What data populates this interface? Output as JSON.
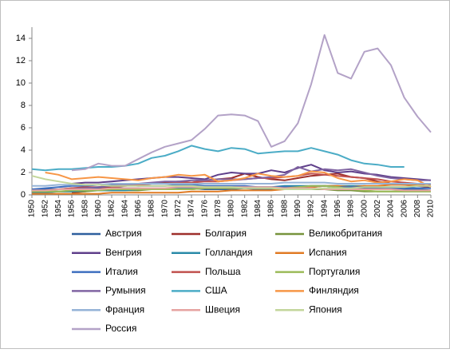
{
  "chart_data": {
    "type": "line",
    "x": [
      1950,
      1952,
      1954,
      1956,
      1958,
      1960,
      1962,
      1964,
      1966,
      1968,
      1970,
      1972,
      1974,
      1976,
      1978,
      1980,
      1982,
      1984,
      1986,
      1988,
      1990,
      1992,
      1994,
      1996,
      1998,
      2000,
      2002,
      2004,
      2006,
      2008,
      2010
    ],
    "xlim": [
      1950,
      2010
    ],
    "xticks": [
      1950,
      1952,
      1954,
      1956,
      1958,
      1960,
      1962,
      1964,
      1966,
      1968,
      1970,
      1972,
      1974,
      1976,
      1978,
      1980,
      1982,
      1984,
      1986,
      1988,
      1990,
      1992,
      1994,
      1996,
      1998,
      2000,
      2002,
      2004,
      2006,
      2008,
      2010
    ],
    "ylim": [
      0,
      15
    ],
    "yticks": [
      0,
      2,
      4,
      6,
      8,
      10,
      12,
      14
    ],
    "grid": false,
    "legend": "bottom",
    "series": [
      {
        "name": "Австрия",
        "color": "#2e5f9e",
        "values": [
          0.4,
          0.5,
          0.5,
          0.6,
          0.5,
          0.6,
          0.7,
          0.6,
          0.6,
          0.5,
          0.5,
          0.6,
          0.6,
          0.5,
          0.5,
          0.5,
          0.6,
          0.5,
          0.5,
          0.5,
          0.6,
          0.7,
          0.8,
          0.7,
          0.7,
          0.6,
          0.6,
          0.5,
          0.5,
          0.5,
          0.4
        ]
      },
      {
        "name": "Болгария",
        "color": "#9e2f2b",
        "values": [
          null,
          null,
          null,
          0.2,
          0.3,
          0.5,
          0.7,
          0.8,
          0.9,
          1.0,
          1.1,
          1.2,
          1.1,
          1.3,
          1.4,
          1.5,
          1.9,
          1.6,
          1.4,
          1.3,
          1.5,
          1.7,
          1.8,
          1.9,
          1.6,
          1.5,
          1.2,
          1.0,
          0.9,
          0.8,
          0.7
        ]
      },
      {
        "name": "Великобритания",
        "color": "#77933c",
        "values": [
          0.3,
          0.3,
          0.3,
          0.3,
          0.3,
          0.4,
          0.4,
          0.4,
          0.4,
          0.5,
          0.5,
          0.5,
          0.5,
          0.6,
          0.6,
          0.6,
          0.7,
          0.6,
          0.6,
          0.5,
          0.5,
          0.5,
          0.5,
          0.4,
          0.4,
          0.3,
          0.3,
          0.3,
          0.3,
          0.3,
          0.3
        ]
      },
      {
        "name": "Венгрия",
        "color": "#5f3f8a",
        "values": [
          null,
          null,
          null,
          1.0,
          1.1,
          1.1,
          1.2,
          1.3,
          1.4,
          1.5,
          1.6,
          1.6,
          1.5,
          1.4,
          1.8,
          2.0,
          1.9,
          1.9,
          2.2,
          2.0,
          2.4,
          2.7,
          2.2,
          2.0,
          2.1,
          1.9,
          1.8,
          1.6,
          1.5,
          1.4,
          1.3
        ]
      },
      {
        "name": "Голландия",
        "color": "#2a8aa8",
        "values": [
          0.2,
          0.2,
          0.3,
          0.3,
          0.4,
          0.4,
          0.4,
          0.4,
          0.5,
          0.5,
          0.5,
          0.6,
          0.6,
          0.6,
          0.6,
          0.7,
          0.7,
          0.7,
          0.7,
          0.8,
          0.8,
          0.8,
          0.8,
          0.8,
          0.8,
          0.8,
          0.7,
          0.7,
          0.7,
          0.6,
          0.6
        ]
      },
      {
        "name": "Испания",
        "color": "#e07b24",
        "values": [
          0.1,
          0.1,
          0.1,
          0.1,
          0.1,
          0.1,
          0.2,
          0.2,
          0.2,
          0.2,
          0.2,
          0.2,
          0.3,
          0.3,
          0.3,
          0.4,
          0.4,
          0.4,
          0.4,
          0.5,
          0.6,
          0.7,
          0.8,
          0.8,
          0.7,
          0.8,
          0.8,
          0.9,
          0.9,
          0.9,
          0.8
        ]
      },
      {
        "name": "Италия",
        "color": "#3e6fbf",
        "values": [
          0.5,
          0.6,
          0.7,
          0.8,
          0.8,
          0.9,
          0.9,
          0.9,
          0.8,
          0.8,
          0.8,
          0.9,
          0.9,
          0.8,
          0.8,
          0.8,
          0.8,
          0.7,
          0.7,
          0.7,
          0.7,
          0.8,
          0.8,
          0.7,
          0.7,
          0.7,
          0.7,
          0.6,
          0.6,
          0.6,
          0.6
        ]
      },
      {
        "name": "Польша",
        "color": "#c0504d",
        "values": [
          0.3,
          0.4,
          0.5,
          0.6,
          0.7,
          0.7,
          0.8,
          0.8,
          0.9,
          1.0,
          1.0,
          1.1,
          1.1,
          1.2,
          1.2,
          1.3,
          1.4,
          1.5,
          1.5,
          1.6,
          1.7,
          1.9,
          1.8,
          1.7,
          1.6,
          1.5,
          1.4,
          1.2,
          1.1,
          1.0,
          0.9
        ]
      },
      {
        "name": "Португалия",
        "color": "#9bbb59",
        "values": [
          0.3,
          0.3,
          0.3,
          0.4,
          0.4,
          0.4,
          0.5,
          0.5,
          0.5,
          0.5,
          0.5,
          0.5,
          0.5,
          0.6,
          0.6,
          0.6,
          0.6,
          0.6,
          0.6,
          0.6,
          0.7,
          0.8,
          0.8,
          0.7,
          0.5,
          0.4,
          0.3,
          0.3,
          0.3,
          0.3,
          0.3
        ]
      },
      {
        "name": "Румыния",
        "color": "#8064a2",
        "values": [
          null,
          null,
          null,
          0.5,
          0.6,
          0.7,
          0.8,
          0.9,
          1.0,
          1.1,
          1.2,
          1.2,
          1.3,
          1.3,
          1.4,
          1.4,
          1.4,
          1.5,
          1.6,
          1.8,
          2.5,
          2.1,
          2.3,
          2.2,
          2.3,
          2.0,
          1.7,
          1.5,
          1.4,
          1.3,
          1.3
        ]
      },
      {
        "name": "США",
        "color": "#4bacc6",
        "values": [
          2.3,
          2.2,
          2.3,
          2.3,
          2.4,
          2.5,
          2.5,
          2.6,
          2.8,
          3.3,
          3.5,
          3.9,
          4.4,
          4.1,
          3.9,
          4.2,
          4.1,
          3.7,
          3.8,
          3.9,
          3.9,
          4.2,
          3.9,
          3.6,
          3.1,
          2.8,
          2.7,
          2.5,
          2.5,
          null,
          null
        ]
      },
      {
        "name": "Финляндия",
        "color": "#f79646",
        "values": [
          null,
          2.0,
          1.8,
          1.4,
          1.5,
          1.6,
          1.5,
          1.4,
          1.3,
          1.5,
          1.6,
          1.8,
          1.7,
          1.8,
          1.2,
          1.3,
          1.5,
          1.9,
          1.7,
          1.6,
          1.7,
          2.1,
          2.0,
          1.5,
          1.2,
          1.3,
          1.1,
          1.2,
          1.4,
          1.3,
          0.7
        ]
      },
      {
        "name": "Франция",
        "color": "#95b3d7",
        "values": [
          0.8,
          0.8,
          0.9,
          0.9,
          0.9,
          0.9,
          1.0,
          1.0,
          1.0,
          1.0,
          1.0,
          1.0,
          1.0,
          1.0,
          1.0,
          1.0,
          1.0,
          1.0,
          1.0,
          1.1,
          1.1,
          1.1,
          1.1,
          1.0,
          1.0,
          1.0,
          1.0,
          1.0,
          1.0,
          1.0,
          1.0
        ]
      },
      {
        "name": "Швеция",
        "color": "#e6a3a1",
        "values": [
          0.4,
          0.4,
          0.5,
          0.5,
          0.5,
          0.5,
          0.6,
          0.6,
          0.6,
          0.6,
          0.6,
          0.7,
          0.7,
          0.7,
          0.7,
          0.7,
          0.7,
          0.7,
          0.7,
          0.6,
          0.6,
          0.6,
          0.5,
          0.5,
          0.5,
          0.5,
          0.5,
          0.5,
          0.4,
          0.4,
          0.4
        ]
      },
      {
        "name": "Япония",
        "color": "#c3d69b",
        "values": [
          1.7,
          1.4,
          1.2,
          1.0,
          0.9,
          0.9,
          0.8,
          0.8,
          0.8,
          0.8,
          0.8,
          0.8,
          0.8,
          0.7,
          0.7,
          0.7,
          0.6,
          0.6,
          0.6,
          0.5,
          0.5,
          0.5,
          0.6,
          0.6,
          0.6,
          0.7,
          0.7,
          0.7,
          0.7,
          0.8,
          0.8
        ]
      },
      {
        "name": "Россия",
        "color": "#b3a2c7",
        "values": [
          null,
          null,
          null,
          2.2,
          2.3,
          2.8,
          2.6,
          2.6,
          3.2,
          3.8,
          4.3,
          4.6,
          4.9,
          5.9,
          7.1,
          7.2,
          7.1,
          6.6,
          4.3,
          4.8,
          6.4,
          9.9,
          14.3,
          10.9,
          10.4,
          12.8,
          13.1,
          11.6,
          8.7,
          7.0,
          5.6
        ]
      }
    ]
  }
}
